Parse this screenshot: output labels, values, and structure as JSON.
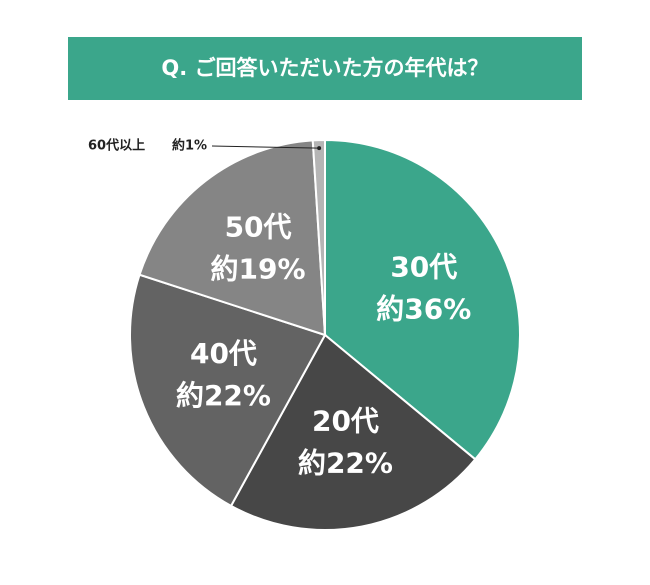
{
  "chart_data": {
    "type": "pie",
    "title": "Q. ご回答いただいた方の年代は？",
    "categories": [
      "30代",
      "20代",
      "40代",
      "50代",
      "60代以上"
    ],
    "values": [
      36,
      22,
      22,
      19,
      1
    ],
    "value_labels": [
      "約36%",
      "約22%",
      "約22%",
      "約19%",
      "約1%"
    ],
    "colors": [
      "#3ba68b",
      "#474747",
      "#636363",
      "#858585",
      "#b5b5b5"
    ],
    "title_color": "#3ba68b"
  }
}
